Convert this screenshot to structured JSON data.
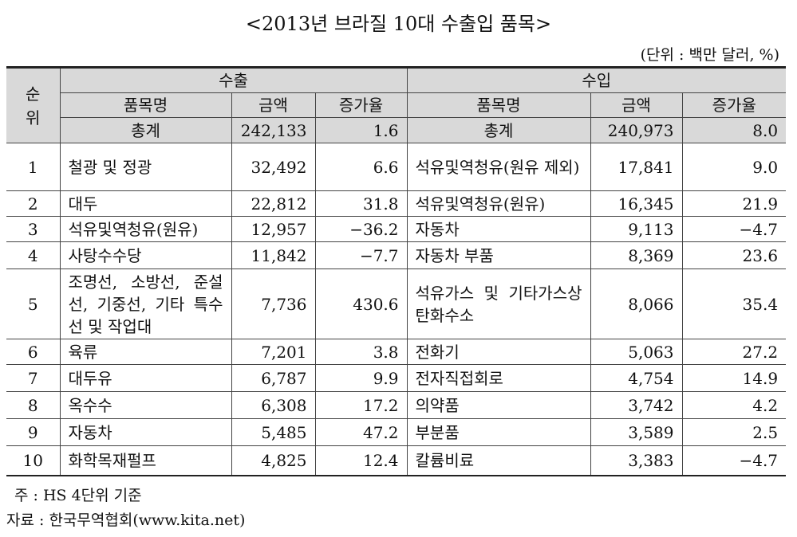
{
  "title": "<2013년 브라질 10대 수출입 품목>",
  "unit": "(단위 : 백만 달러, %)",
  "table": {
    "rank_header": "순위",
    "export_header": "수출",
    "import_header": "수입",
    "export_columns": [
      "품목명",
      "금액",
      "증가율"
    ],
    "import_columns": [
      "품목명",
      "금액",
      "증가율"
    ],
    "total": [
      "총계",
      "242,133",
      "1.6",
      "총계",
      "240,973",
      "8.0"
    ],
    "rows": [
      [
        "1",
        "철광 및 정광",
        "32,492",
        "6.6",
        "석유및역청유(원유 제외)",
        "17,841",
        "9.0"
      ],
      [
        "2",
        "대두",
        "22,812",
        "31.8",
        "석유및역청유(원유)",
        "16,345",
        "21.9"
      ],
      [
        "3",
        "석유및역청유(원유)",
        "12,957",
        "−36.2",
        "자동차",
        "9,113",
        "−4.7"
      ],
      [
        "4",
        "사탕수수당",
        "11,842",
        "−7.7",
        "자동차 부품",
        "8,369",
        "23.6"
      ],
      [
        "5",
        "조명선, 소방선, 준설선, 기중선, 기타 특수선 및 작업대",
        "7,736",
        "430.6",
        "석유가스 및 기타가스상탄화수소",
        "8,066",
        "35.4"
      ],
      [
        "6",
        "육류",
        "7,201",
        "3.8",
        "전화기",
        "5,063",
        "27.2"
      ],
      [
        "7",
        "대두유",
        "6,787",
        "9.9",
        "전자직접회로",
        "4,754",
        "14.9"
      ],
      [
        "8",
        "옥수수",
        "6,308",
        "17.2",
        "의약품",
        "3,742",
        "4.2"
      ],
      [
        "9",
        "자동차",
        "5,485",
        "47.2",
        "부분품",
        "3,589",
        "2.5"
      ],
      [
        "10",
        "화학목재펄프",
        "4,825",
        "12.4",
        "칼륨비료",
        "3,383",
        "−4.7"
      ]
    ]
  },
  "notes": [
    "주 : HS 4단위 기준",
    "자료 : 한국무역협회(www.kita.net)"
  ]
}
